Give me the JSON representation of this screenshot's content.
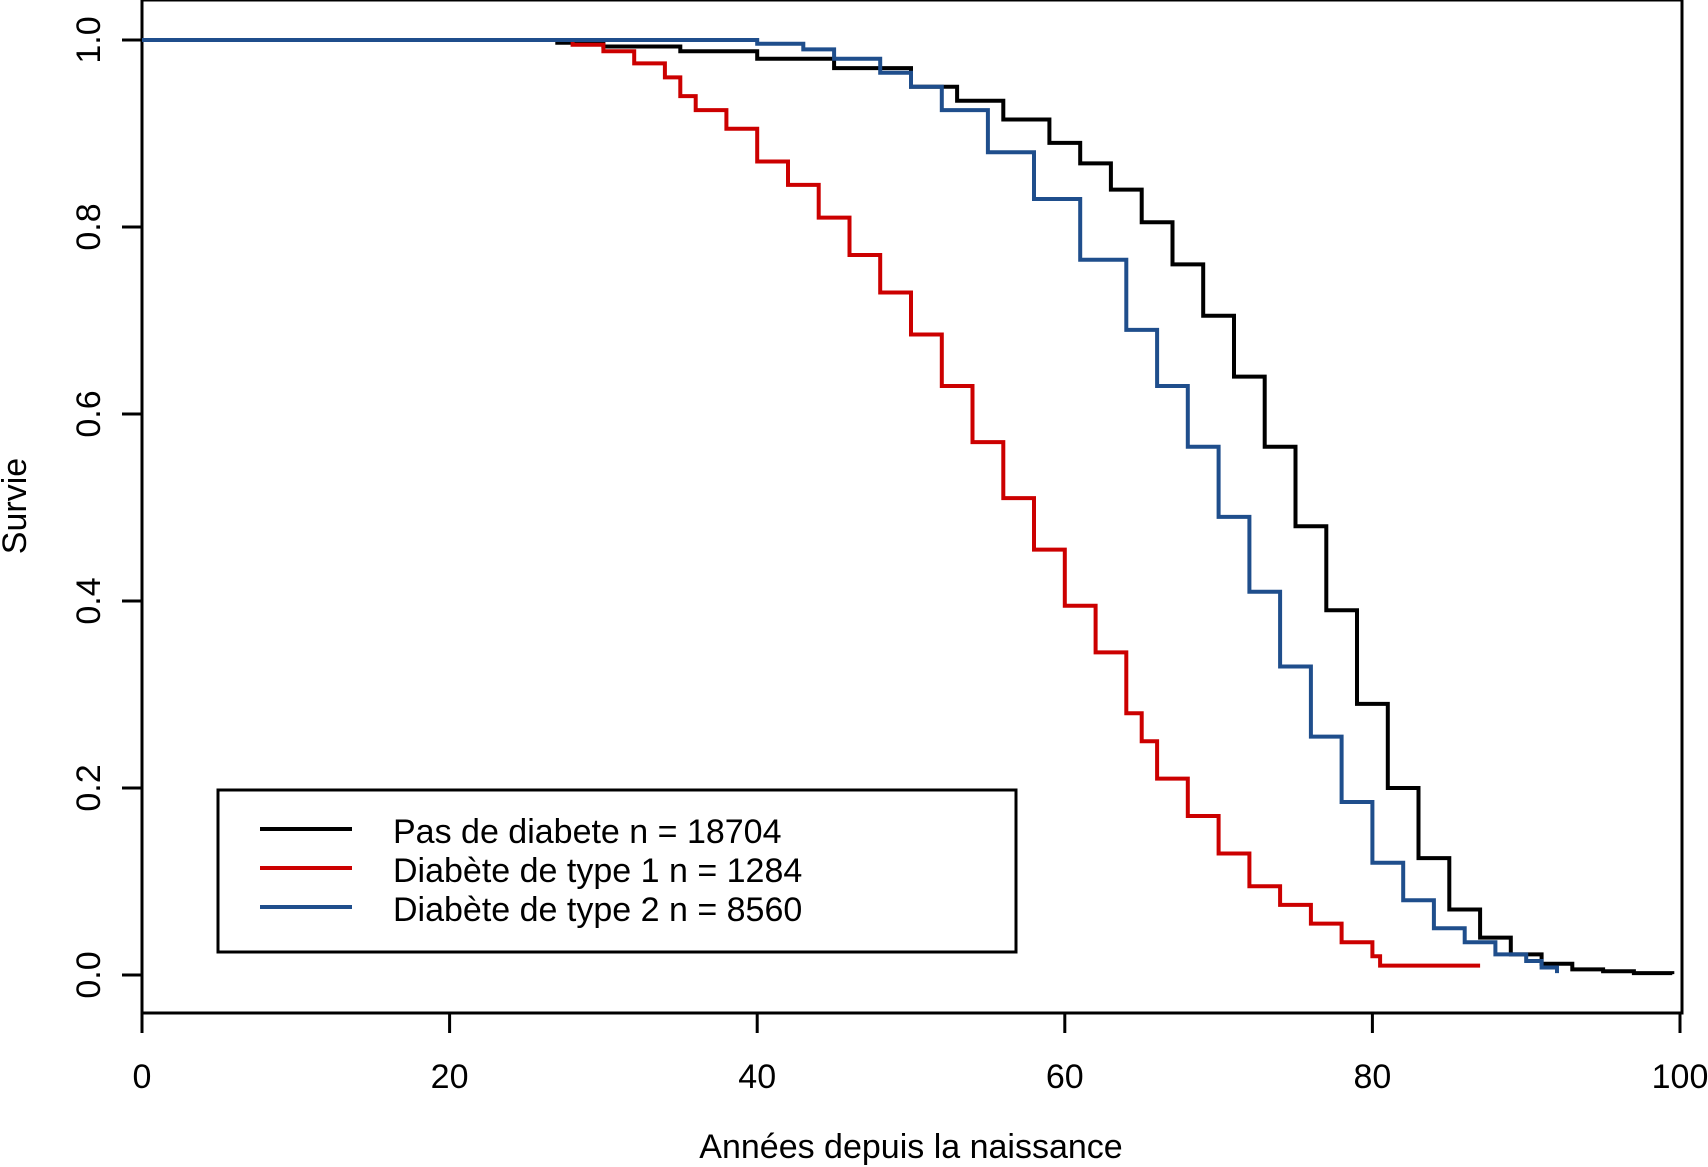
{
  "chart_data": {
    "type": "line",
    "title": "",
    "xlabel": "Années depuis la naissance",
    "ylabel": "Survie",
    "xlim": [
      0,
      100
    ],
    "ylim": [
      0.0,
      1.0
    ],
    "x_ticks": [
      0,
      20,
      40,
      60,
      80,
      100
    ],
    "y_ticks": [
      0.0,
      0.2,
      0.4,
      0.6,
      0.8,
      1.0
    ],
    "x_tick_labels": [
      "0",
      "20",
      "40",
      "60",
      "80",
      "100"
    ],
    "y_tick_labels": [
      "0.0",
      "0.2",
      "0.4",
      "0.6",
      "0.8",
      "1.0"
    ],
    "grid": false,
    "legend_position": "bottom-left",
    "series": [
      {
        "name": "Pas de diabete n = 18704",
        "color": "#000000",
        "x": [
          0,
          23.4,
          27,
          30,
          35,
          40,
          45,
          50,
          53,
          56,
          59,
          61,
          63,
          65,
          67,
          69,
          71,
          73,
          75,
          77,
          79,
          81,
          83,
          85,
          87,
          89,
          91,
          93,
          95,
          97,
          99.5
        ],
        "y": [
          1.0,
          1.0,
          0.997,
          0.993,
          0.988,
          0.98,
          0.97,
          0.95,
          0.935,
          0.915,
          0.89,
          0.868,
          0.84,
          0.805,
          0.76,
          0.705,
          0.64,
          0.565,
          0.48,
          0.39,
          0.29,
          0.2,
          0.125,
          0.07,
          0.04,
          0.022,
          0.012,
          0.006,
          0.004,
          0.002,
          0.001
        ]
      },
      {
        "name": "Diabète de type 1 n = 1284",
        "color": "#CC0000",
        "x": [
          0,
          25,
          28,
          30,
          32,
          34,
          35,
          36,
          38,
          40,
          42,
          44,
          46,
          48,
          50,
          52,
          54,
          56,
          58,
          60,
          62,
          64,
          65,
          66,
          68,
          70,
          72,
          74,
          76,
          78,
          80,
          80.5,
          84,
          87
        ],
        "y": [
          1.0,
          1.0,
          0.995,
          0.988,
          0.975,
          0.96,
          0.94,
          0.925,
          0.905,
          0.87,
          0.845,
          0.81,
          0.77,
          0.73,
          0.685,
          0.63,
          0.57,
          0.51,
          0.455,
          0.395,
          0.345,
          0.28,
          0.25,
          0.21,
          0.17,
          0.13,
          0.095,
          0.075,
          0.055,
          0.035,
          0.02,
          0.01,
          0.01,
          0.01
        ]
      },
      {
        "name": "Diabète de type 2 n = 8560",
        "color": "#1F4E8C",
        "x": [
          0,
          35,
          40,
          43,
          45,
          48,
          50,
          52,
          55,
          58,
          61,
          64,
          66,
          68,
          70,
          72,
          74,
          76,
          78,
          80,
          82,
          84,
          86,
          88,
          90,
          91,
          92
        ],
        "y": [
          1.0,
          1.0,
          0.996,
          0.99,
          0.98,
          0.965,
          0.95,
          0.925,
          0.88,
          0.83,
          0.765,
          0.69,
          0.63,
          0.565,
          0.49,
          0.41,
          0.33,
          0.255,
          0.185,
          0.12,
          0.08,
          0.05,
          0.035,
          0.022,
          0.015,
          0.008,
          0.002
        ]
      }
    ]
  }
}
